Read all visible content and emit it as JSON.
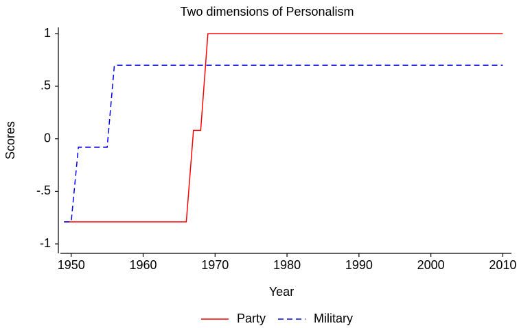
{
  "chart_data": {
    "type": "line",
    "title": "Two dimensions of Personalism",
    "x_label": "Year",
    "y_label": "Scores",
    "xlim": [
      1948.5,
      2011.2
    ],
    "ylim": [
      -1.09,
      1.06
    ],
    "xticks": [
      1950,
      1960,
      1970,
      1980,
      1990,
      2000,
      2010
    ],
    "yticks": [
      -1,
      {
        "value": -0.5,
        "label": "-.5"
      },
      0,
      {
        "value": 0.5,
        "label": ".5"
      },
      1
    ],
    "grid": false,
    "legend": "bottom",
    "series": [
      {
        "name": "Party",
        "color": "#ff0000",
        "dash": false,
        "x": [
          1949,
          1966,
          1967,
          1968,
          1969,
          2010
        ],
        "values": [
          -0.79,
          -0.79,
          0.08,
          0.08,
          1,
          1
        ]
      },
      {
        "name": "Military",
        "color": "#0000ff",
        "dash": true,
        "x": [
          1949,
          1950,
          1951,
          1955,
          1956,
          2010
        ],
        "values": [
          -0.79,
          -0.79,
          -0.08,
          -0.08,
          0.7,
          0.7
        ]
      }
    ]
  }
}
